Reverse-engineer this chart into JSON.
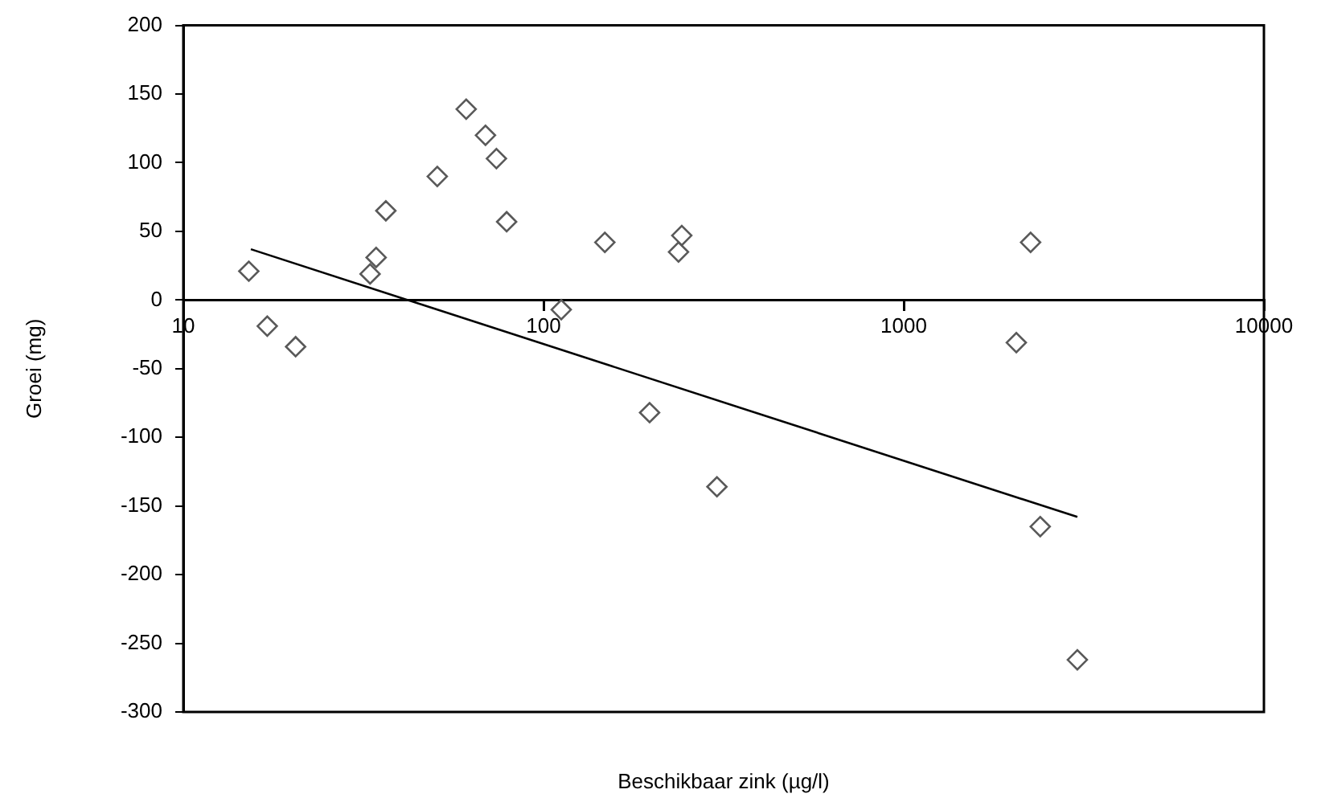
{
  "chart_data": {
    "type": "scatter",
    "xlabel": "Beschikbaar zink (µg/l)",
    "ylabel": "Groei (mg)",
    "log": "x",
    "grid": false,
    "legend": false,
    "xlim": [
      10,
      10000
    ],
    "xticks": [
      10,
      100,
      1000,
      10000
    ],
    "ylim": [
      -300,
      200
    ],
    "yticks": [
      -300,
      -250,
      -200,
      -150,
      -100,
      -50,
      0,
      50,
      100,
      150,
      200
    ],
    "series": [
      {
        "color": "#595959",
        "marker": "diamond",
        "x": [
          15.2,
          17.1,
          20.5,
          33,
          34.3,
          36.5,
          50.7,
          61,
          69,
          74,
          79,
          112,
          148,
          237,
          242,
          197,
          303,
          2250,
          2054,
          2393,
          3034
        ],
        "values": [
          21,
          -19,
          -34,
          19,
          31,
          65,
          90,
          139,
          120,
          103,
          57,
          -7,
          42,
          35,
          47,
          -82,
          -136,
          42,
          -31,
          -165,
          -262
        ]
      },
      {
        "type": "line",
        "color": "#000000",
        "marker": "none",
        "x": [
          15.4,
          3034
        ],
        "values": [
          37,
          -158
        ]
      }
    ]
  }
}
